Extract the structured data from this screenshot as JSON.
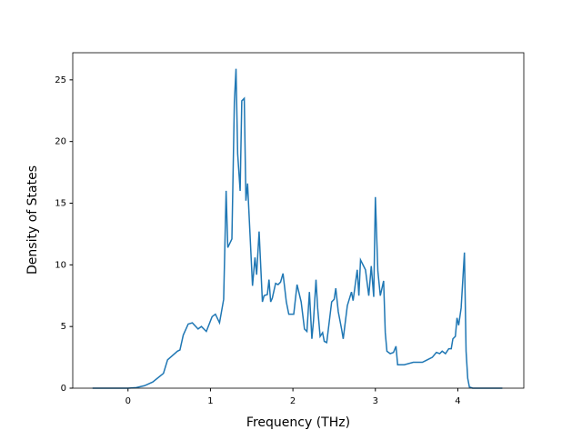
{
  "chart_data": {
    "type": "line",
    "x_label": "Frequency (THz)",
    "y_label": "Density of States",
    "xlim": [
      -0.67,
      4.8
    ],
    "ylim": [
      0,
      27.2
    ],
    "xticks": [
      0,
      1,
      2,
      3,
      4
    ],
    "yticks": [
      0,
      5,
      10,
      15,
      20,
      25
    ],
    "series": [
      {
        "color": "#1f77b4",
        "x": [
          -0.43,
          -0.2,
          0,
          0.1,
          0.2,
          0.3,
          0.43,
          0.48,
          0.6,
          0.63,
          0.67,
          0.73,
          0.78,
          0.85,
          0.89,
          0.95,
          1.02,
          1.06,
          1.11,
          1.16,
          1.19,
          1.21,
          1.26,
          1.29,
          1.31,
          1.33,
          1.36,
          1.38,
          1.41,
          1.43,
          1.45,
          1.51,
          1.54,
          1.56,
          1.59,
          1.63,
          1.65,
          1.69,
          1.71,
          1.73,
          1.75,
          1.79,
          1.82,
          1.85,
          1.88,
          1.92,
          1.95,
          2.01,
          2.05,
          2.1,
          2.14,
          2.17,
          2.2,
          2.23,
          2.25,
          2.28,
          2.3,
          2.33,
          2.36,
          2.38,
          2.41,
          2.47,
          2.5,
          2.52,
          2.55,
          2.59,
          2.61,
          2.66,
          2.71,
          2.73,
          2.78,
          2.8,
          2.82,
          2.88,
          2.92,
          2.95,
          2.98,
          3.0,
          3.03,
          3.06,
          3.1,
          3.12,
          3.14,
          3.18,
          3.22,
          3.25,
          3.27,
          3.35,
          3.46,
          3.57,
          3.63,
          3.69,
          3.74,
          3.78,
          3.81,
          3.85,
          3.89,
          3.92,
          3.94,
          3.97,
          3.99,
          4.01,
          4.04,
          4.08,
          4.1,
          4.12,
          4.14,
          4.18,
          4.54
        ],
        "values": [
          0,
          0,
          0,
          0.05,
          0.2,
          0.5,
          1.2,
          2.3,
          3.0,
          3.1,
          4.3,
          5.2,
          5.3,
          4.8,
          5.0,
          4.6,
          5.8,
          6.0,
          5.3,
          7.2,
          16.0,
          11.4,
          12.1,
          23.2,
          25.9,
          19.0,
          16.0,
          23.3,
          23.5,
          15.2,
          16.6,
          8.3,
          10.6,
          9.2,
          12.7,
          7.0,
          7.5,
          7.6,
          8.8,
          7.0,
          7.3,
          8.5,
          8.4,
          8.6,
          9.3,
          7.0,
          6.0,
          6.0,
          8.4,
          7.0,
          4.8,
          4.6,
          7.8,
          4.0,
          5.5,
          8.8,
          6.5,
          4.2,
          4.5,
          3.8,
          3.7,
          7.0,
          7.2,
          8.1,
          6.2,
          4.8,
          4.0,
          6.7,
          7.8,
          7.1,
          9.6,
          7.5,
          10.4,
          9.6,
          7.5,
          9.9,
          7.4,
          15.5,
          9.5,
          7.5,
          8.7,
          4.5,
          3.0,
          2.8,
          2.9,
          3.4,
          1.9,
          1.9,
          2.1,
          2.1,
          2.3,
          2.5,
          2.9,
          2.8,
          3.0,
          2.8,
          3.2,
          3.2,
          4.0,
          4.2,
          5.7,
          5.1,
          6.5,
          11.0,
          3.0,
          0.8,
          0.1,
          0,
          0
        ]
      }
    ]
  }
}
